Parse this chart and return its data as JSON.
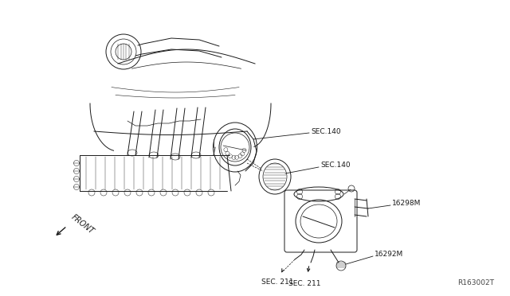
{
  "background_color": "#ffffff",
  "diagram_ref": "R163002T",
  "front_label": "FRONT",
  "labels": {
    "sec140_upper": "SEC.140",
    "sec140_lower": "SEC.140",
    "part16298M": "16298M",
    "part16292M": "16292M",
    "sec211_left": "SEC. 211",
    "sec211_right": "SEC. 211"
  },
  "line_color": "#1a1a1a",
  "text_color": "#1a1a1a",
  "ref_color": "#444444",
  "label_fontsize": 6.5,
  "ref_fontsize": 6.5
}
